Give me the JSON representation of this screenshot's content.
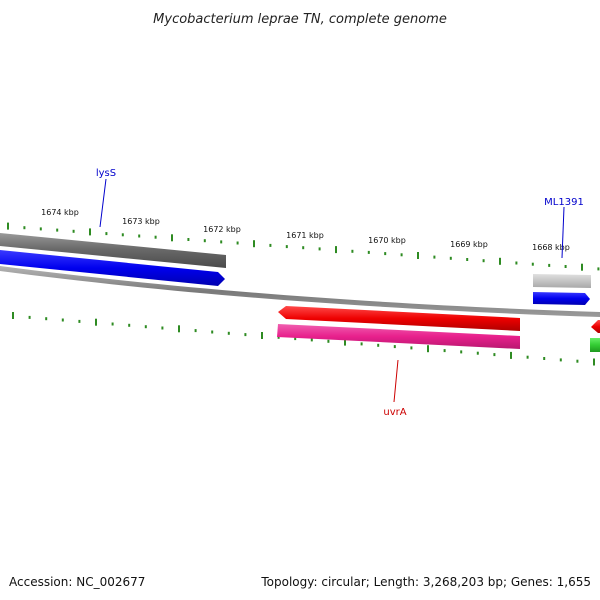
{
  "title": "Mycobacterium leprae TN, complete genome",
  "footer": {
    "accession": "Accession: NC_002677",
    "summary": "Topology: circular; Length: 3,268,203 bp; Genes: 1,655"
  },
  "scale": {
    "ticks": [
      "1674 kbp",
      "1673 kbp",
      "1672 kbp",
      "1671 kbp",
      "1670 kbp",
      "1669 kbp",
      "1668 kbp"
    ]
  },
  "genes": {
    "lysS": {
      "label": "lysS",
      "color": "#0000cc"
    },
    "ML1391": {
      "label": "ML1391",
      "color": "#0000cc"
    },
    "uvrA": {
      "label": "uvrA",
      "color": "#cc0000"
    }
  },
  "colors": {
    "backbone": "#8a8a8a",
    "tick": "#2e8b22",
    "forward_gray": "#6e6e6e",
    "light_gray": "#bdbdbd",
    "cds_blue": "#0000ee",
    "cds_red": "#ee0000",
    "cds_pink": "#e8208c",
    "cds_green": "#33cc33"
  }
}
